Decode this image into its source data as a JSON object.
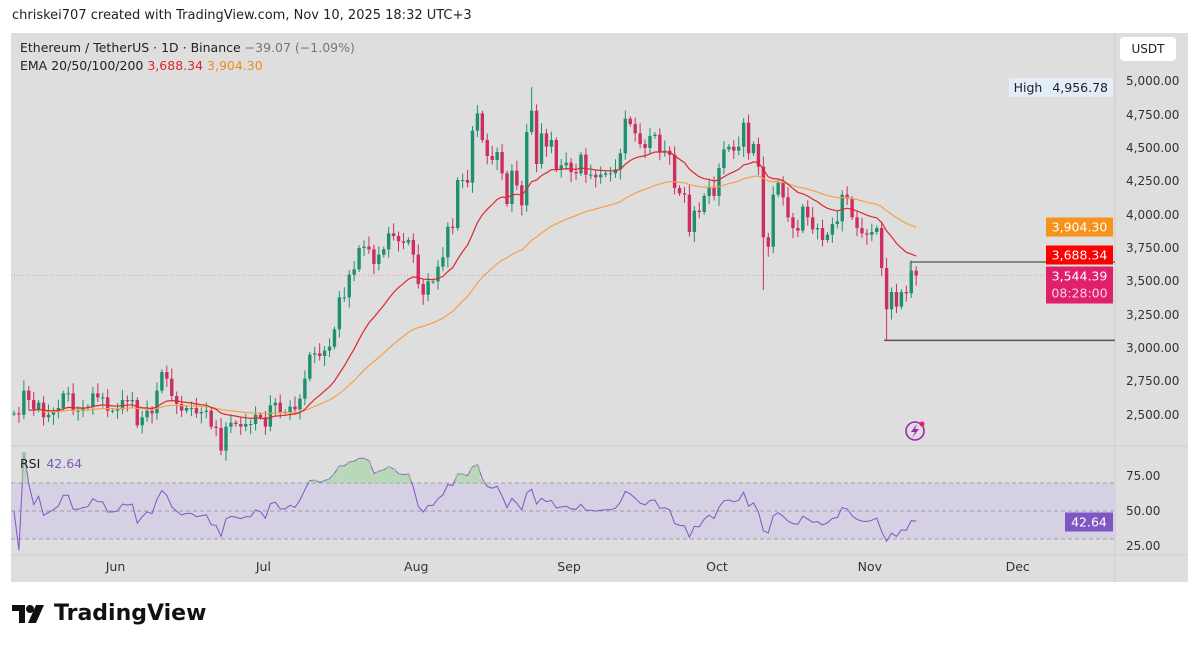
{
  "credit": "chriskei707 created with TradingView.com, Nov 10, 2025 18:32 UTC+3",
  "legend": {
    "symbol": "Ethereum / TetherUS · 1D · Binance",
    "change": "−39.07 (−1.09%)",
    "ema_label": "EMA 20/50/100/200",
    "ema20": "3,688.34",
    "ema50": "3,904.30"
  },
  "rsi_legend": {
    "label": "RSI",
    "value": "42.64"
  },
  "currency_button": "USDT",
  "high_tag": {
    "label": "High",
    "value": "4,956.78"
  },
  "badges": {
    "ema50": "3,904.30",
    "ema20": "3,688.34",
    "last_price": "3,544.39",
    "countdown": "08:28:00"
  },
  "brand": "TradingView",
  "colors": {
    "up": "#1f8f72",
    "down": "#cc2e5d",
    "ema20": "#e0262b",
    "ema50": "#f5a04a",
    "rsi": "#7e57c2",
    "last_price": "#e91e63",
    "background": "#dedede"
  },
  "chart_data": [
    {
      "type": "candlestick",
      "title": "Ethereum / TetherUS · 1D · Binance",
      "x_start": "2025-05-11",
      "x_end": "2025-11-10",
      "x_tick_labels": [
        "Jun",
        "Jul",
        "Aug",
        "Sep",
        "Oct",
        "Nov",
        "Dec"
      ],
      "y_tick_labels": [
        "5,000.00",
        "4,750.00",
        "4,500.00",
        "4,250.00",
        "4,000.00",
        "3,750.00",
        "3,500.00",
        "3,250.00",
        "3,000.00",
        "2,750.00",
        "2,500.00"
      ],
      "y_ticks": [
        5000,
        4750,
        4500,
        4250,
        4000,
        3750,
        3500,
        3250,
        3000,
        2750,
        2500
      ],
      "ylim": [
        2280,
        5220
      ],
      "closes": [
        2510,
        2500,
        2680,
        2610,
        2540,
        2590,
        2480,
        2500,
        2520,
        2550,
        2660,
        2660,
        2530,
        2530,
        2550,
        2560,
        2660,
        2630,
        2630,
        2530,
        2530,
        2540,
        2610,
        2600,
        2610,
        2420,
        2480,
        2530,
        2510,
        2680,
        2820,
        2770,
        2640,
        2580,
        2530,
        2550,
        2550,
        2510,
        2520,
        2530,
        2410,
        2400,
        2230,
        2410,
        2440,
        2430,
        2410,
        2430,
        2430,
        2500,
        2480,
        2410,
        2570,
        2590,
        2520,
        2520,
        2560,
        2540,
        2620,
        2770,
        2950,
        2960,
        2940,
        2980,
        3010,
        3140,
        3380,
        3380,
        3550,
        3590,
        3750,
        3760,
        3740,
        3630,
        3700,
        3740,
        3860,
        3840,
        3800,
        3790,
        3810,
        3700,
        3480,
        3400,
        3500,
        3500,
        3610,
        3680,
        3910,
        3900,
        4260,
        4260,
        4240,
        4630,
        4760,
        4560,
        4440,
        4410,
        4470,
        4310,
        4080,
        4330,
        4220,
        4070,
        4620,
        4780,
        4380,
        4610,
        4510,
        4560,
        4340,
        4370,
        4390,
        4320,
        4310,
        4450,
        4300,
        4300,
        4280,
        4300,
        4310,
        4310,
        4340,
        4460,
        4720,
        4680,
        4610,
        4530,
        4500,
        4590,
        4600,
        4470,
        4480,
        4450,
        4200,
        4160,
        4150,
        3870,
        4030,
        4020,
        4140,
        4210,
        4140,
        4350,
        4490,
        4510,
        4480,
        4510,
        4690,
        4460,
        4530,
        4360,
        3830,
        3760,
        4150,
        4240,
        4130,
        3980,
        3900,
        3880,
        4060,
        3980,
        3890,
        3900,
        3810,
        3850,
        3930,
        3950,
        4150,
        4120,
        3980,
        3900,
        3860,
        3850,
        3870,
        3900,
        3600,
        3290,
        3420,
        3310,
        3420,
        3410,
        3580,
        3544.39
      ],
      "notable": {
        "high": {
          "date": "2025-08-24",
          "value": 4956.78
        },
        "oct10_low": 3435,
        "nov4_low": 3057
      },
      "series": [
        {
          "name": "EMA 20",
          "last": 3688.34
        },
        {
          "name": "EMA 50",
          "last": 3904.3
        }
      ],
      "horizontal_levels": [
        3645,
        3057
      ],
      "last_price": 3544.39
    },
    {
      "type": "line",
      "title": "RSI",
      "y_tick_labels": [
        "75.00",
        "50.00",
        "25.00"
      ],
      "y_ticks": [
        75,
        50,
        25
      ],
      "bands": [
        30,
        50,
        70
      ],
      "last": 42.64
    }
  ]
}
